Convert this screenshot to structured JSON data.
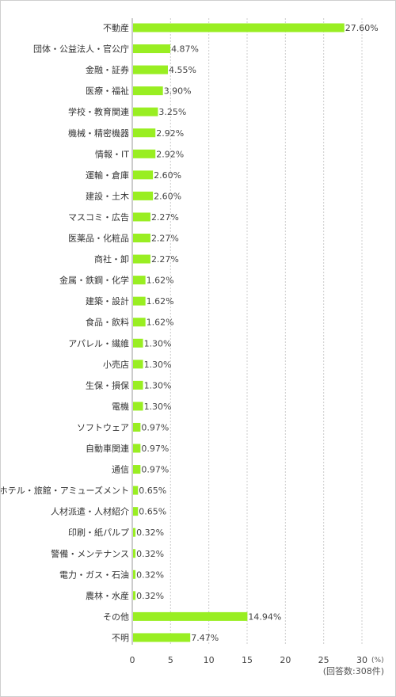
{
  "chart_data": {
    "type": "bar",
    "orientation": "horizontal",
    "categories": [
      "不動産",
      "団体・公益法人・官公庁",
      "金融・証券",
      "医療・福祉",
      "学校・教育関連",
      "機械・精密機器",
      "情報・IT",
      "運輸・倉庫",
      "建設・土木",
      "マスコミ・広告",
      "医薬品・化粧品",
      "商社・卸",
      "金属・鉄鋼・化学",
      "建築・設計",
      "食品・飲料",
      "アパレル・繊維",
      "小売店",
      "生保・損保",
      "電機",
      "ソフトウェア",
      "自動車関連",
      "通信",
      "ホテル・旅館・アミューズメント",
      "人材派遣・人材紹介",
      "印刷・紙パルプ",
      "警備・メンテナンス",
      "電力・ガス・石油",
      "農林・水産",
      "その他",
      "不明"
    ],
    "values": [
      27.6,
      4.87,
      4.55,
      3.9,
      3.25,
      2.92,
      2.92,
      2.6,
      2.6,
      2.27,
      2.27,
      2.27,
      1.62,
      1.62,
      1.62,
      1.3,
      1.3,
      1.3,
      1.3,
      0.97,
      0.97,
      0.97,
      0.65,
      0.65,
      0.32,
      0.32,
      0.32,
      0.32,
      14.94,
      7.47
    ],
    "value_labels": [
      "27.60%",
      "4.87%",
      "4.55%",
      "3.90%",
      "3.25%",
      "2.92%",
      "2.92%",
      "2.60%",
      "2.60%",
      "2.27%",
      "2.27%",
      "2.27%",
      "1.62%",
      "1.62%",
      "1.62%",
      "1.30%",
      "1.30%",
      "1.30%",
      "1.30%",
      "0.97%",
      "0.97%",
      "0.97%",
      "0.65%",
      "0.65%",
      "0.32%",
      "0.32%",
      "0.32%",
      "0.32%",
      "14.94%",
      "7.47%"
    ],
    "xlim": [
      0,
      30
    ],
    "x_ticks": [
      0,
      5,
      10,
      15,
      20,
      25,
      30
    ],
    "x_tick_labels": [
      "0",
      "5",
      "10",
      "15",
      "20",
      "25",
      "30"
    ],
    "x_unit": "(%)",
    "grid": true,
    "bar_color": "#99ee22",
    "note": "(回答数:308件)"
  }
}
